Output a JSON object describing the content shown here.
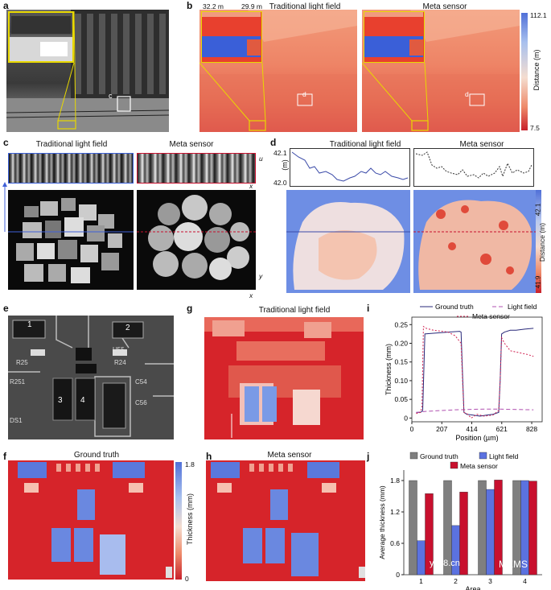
{
  "panel_letters": {
    "a": "a",
    "b": "b",
    "c": "c",
    "d": "d",
    "e": "e",
    "f": "f",
    "g": "g",
    "h": "h",
    "i": "i",
    "j": "j"
  },
  "panel_a": {
    "zoom_label": "c"
  },
  "panel_b": {
    "titles": [
      "Traditional light field",
      "Meta sensor"
    ],
    "inset_scale_left": "32.2 m",
    "inset_scale_right": "29.9 m",
    "roi_label": "d",
    "colorbar": {
      "max": "112.1",
      "min": "7.5",
      "label": "Distance (m)"
    }
  },
  "panel_c": {
    "titles": [
      "Traditional light field",
      "Meta sensor"
    ],
    "axis_u": "u",
    "axis_x_top": "x",
    "axis_y": "y",
    "axis_x_bottom": "x"
  },
  "panel_d": {
    "titles": [
      "Traditional light field",
      "Meta sensor"
    ],
    "ylabel": "(m)",
    "yticks": [
      "42.1",
      "42.0"
    ],
    "colorbar": {
      "max": "42.1",
      "min": "41.9",
      "label": "Distance (m)"
    }
  },
  "panel_e": {
    "areas": [
      "1",
      "2",
      "3",
      "4"
    ],
    "silkscreen": [
      "R25",
      "R24",
      "C54",
      "C56",
      "R251",
      "U55",
      "DS1"
    ]
  },
  "panel_f": {
    "title": "Ground truth",
    "colorbar": {
      "max": "1.8",
      "min": "0",
      "label": "Thickness (mm)"
    }
  },
  "panel_g": {
    "title": "Traditional light field"
  },
  "panel_h": {
    "title": "Meta sensor"
  },
  "chart_i": {
    "type": "line",
    "xlabel": "Position (µm)",
    "ylabel": "Thickness (mm)",
    "xticks": [
      "0",
      "207",
      "414",
      "621",
      "828"
    ],
    "yticks": [
      "0",
      "0.05",
      "0.10",
      "0.15",
      "0.20",
      "0.25"
    ],
    "legend": [
      "Ground truth",
      "Light field",
      "Meta sensor"
    ]
  },
  "chart_j": {
    "type": "bar",
    "xlabel": "Area",
    "ylabel": "Average thickness (mm)",
    "categories": [
      "1",
      "2",
      "3",
      "4"
    ],
    "yticks": [
      "0",
      "0.6",
      "1.2",
      "1.8"
    ],
    "legend": [
      "Ground truth",
      "Light field",
      "Meta sensor"
    ]
  },
  "chart_data": [
    {
      "type": "line",
      "xlabel": "Position (µm)",
      "ylabel": "Thickness (mm)",
      "xlim": [
        0,
        900
      ],
      "ylim": [
        -0.01,
        0.27
      ],
      "series": [
        {
          "name": "Ground truth",
          "color": "#2a2a7a",
          "style": "solid",
          "x": [
            30,
            60,
            75,
            90,
            150,
            250,
            330,
            340,
            350,
            360,
            380,
            420,
            470,
            520,
            560,
            600,
            610,
            620,
            640,
            680,
            720,
            780,
            840
          ],
          "y": [
            0.015,
            0.015,
            0.02,
            0.225,
            0.227,
            0.23,
            0.232,
            0.23,
            0.12,
            0.015,
            0.01,
            0.008,
            0.005,
            0.008,
            0.01,
            0.015,
            0.1,
            0.225,
            0.23,
            0.235,
            0.235,
            0.238,
            0.24
          ]
        },
        {
          "name": "Light field",
          "color": "#b050b0",
          "style": "dashed",
          "x": [
            30,
            100,
            200,
            300,
            400,
            500,
            600,
            700,
            840
          ],
          "y": [
            0.015,
            0.018,
            0.02,
            0.022,
            0.023,
            0.024,
            0.024,
            0.023,
            0.022
          ]
        },
        {
          "name": "Meta sensor",
          "color": "#d02050",
          "style": "dotted",
          "x": [
            30,
            60,
            70,
            80,
            100,
            150,
            250,
            300,
            340,
            350,
            360,
            380,
            410,
            450,
            500,
            560,
            600,
            610,
            620,
            640,
            680,
            740,
            800,
            840
          ],
          "y": [
            0.012,
            0.015,
            0.03,
            0.245,
            0.24,
            0.235,
            0.23,
            0.22,
            0.2,
            0.1,
            0.015,
            0.012,
            0.0,
            0.01,
            0.005,
            0.008,
            0.02,
            0.1,
            0.215,
            0.2,
            0.18,
            0.175,
            0.17,
            0.165
          ]
        }
      ]
    },
    {
      "type": "bar",
      "categories": [
        "1",
        "2",
        "3",
        "4"
      ],
      "ylim": [
        0,
        2.0
      ],
      "series": [
        {
          "name": "Ground truth",
          "color": "#7f7f7f",
          "values": [
            1.8,
            1.8,
            1.8,
            1.8
          ]
        },
        {
          "name": "Light field",
          "color": "#5b72e0",
          "values": [
            0.65,
            0.94,
            1.63,
            1.8
          ]
        },
        {
          "name": "Meta sensor",
          "color": "#c8102e",
          "values": [
            1.55,
            1.58,
            1.81,
            1.79
          ]
        }
      ]
    }
  ],
  "watermark": {
    "left": "ybx8.cn",
    "right": "MEMS"
  }
}
